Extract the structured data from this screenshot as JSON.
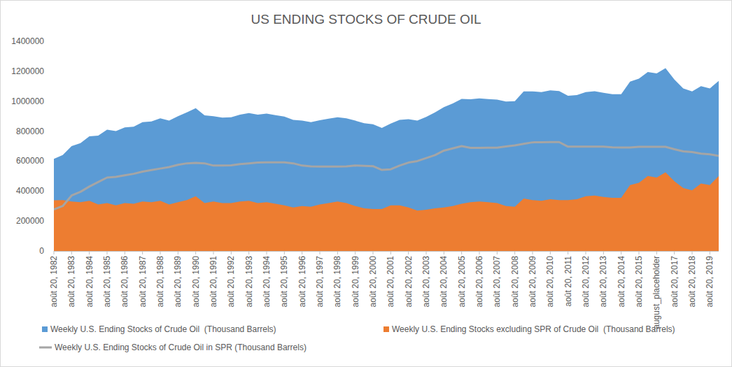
{
  "chart_data": {
    "type": "area",
    "title": "US ENDING STOCKS OF CRUDE OIL",
    "categories": [
      "août 20, 1982",
      null,
      "août 20, 1983",
      null,
      "août 20, 1984",
      null,
      "août 20, 1985",
      null,
      "août 20, 1986",
      null,
      "août 20, 1987",
      null,
      "août 20, 1988",
      null,
      "août 20, 1989",
      null,
      "août 20, 1990",
      null,
      "août 20, 1991",
      null,
      "août 20, 1992",
      null,
      "août 20, 1993",
      null,
      "août 20, 1994",
      null,
      "août 20, 1995",
      null,
      "août 20, 1996",
      null,
      "août 20, 1997",
      null,
      "août 20, 1998",
      null,
      "août 20, 1999",
      null,
      "août 20, 2000",
      null,
      "août 20, 2001",
      null,
      "août 20, 2002",
      null,
      "août 20, 2003",
      null,
      "août 20, 2004",
      null,
      "août 20, 2005",
      null,
      "août 20, 2006",
      null,
      "août 20, 2007",
      null,
      "août 20, 2008",
      null,
      "août 20, 2009",
      null,
      "août 20, 2010",
      null,
      "août 20, 2011",
      null,
      "août 20, 2012",
      null,
      "août 20, 2013",
      null,
      "août 20, 2014",
      null,
      "août 20, 2015",
      null,
      "august_placeholder",
      null,
      "août 20, 2017",
      null,
      "août 20, 2018",
      null,
      "août 20, 2019",
      null
    ],
    "series": [
      {
        "name": "Weekly U.S. Ending Stocks of Crude Oil  (Thousand Barrels)",
        "type": "area",
        "color": "#5b9bd5",
        "values": [
          615000,
          640000,
          700000,
          720000,
          765000,
          770000,
          810000,
          800000,
          825000,
          830000,
          860000,
          865000,
          885000,
          870000,
          900000,
          925000,
          953000,
          905000,
          900000,
          890000,
          892000,
          910000,
          920000,
          910000,
          917000,
          907000,
          897000,
          875000,
          870000,
          860000,
          873000,
          883000,
          893000,
          885000,
          870000,
          853000,
          846000,
          821000,
          850000,
          875000,
          880000,
          870000,
          895000,
          925000,
          960000,
          985000,
          1015000,
          1013000,
          1018000,
          1014000,
          1010000,
          998000,
          1000000,
          1065000,
          1065000,
          1061000,
          1072000,
          1067000,
          1036000,
          1041000,
          1061000,
          1066000,
          1056000,
          1047000,
          1046000,
          1131000,
          1150000,
          1195000,
          1185000,
          1220000,
          1144000,
          1085000,
          1065000,
          1100000,
          1085000,
          1135000
        ]
      },
      {
        "name": "Weekly U.S. Ending Stocks excluding SPR of Crude Oil  (Thousand Barrels)",
        "type": "area",
        "color": "#ed7d31",
        "values": [
          338000,
          340000,
          330000,
          325000,
          335000,
          310000,
          320000,
          305000,
          320000,
          315000,
          330000,
          325000,
          335000,
          310000,
          325000,
          340000,
          365000,
          320000,
          330000,
          320000,
          320000,
          330000,
          335000,
          320000,
          325000,
          315000,
          305000,
          290000,
          300000,
          295000,
          310000,
          320000,
          330000,
          320000,
          300000,
          285000,
          280000,
          280000,
          305000,
          305000,
          290000,
          270000,
          275000,
          285000,
          290000,
          300000,
          315000,
          325000,
          330000,
          325000,
          320000,
          300000,
          295000,
          350000,
          340000,
          335000,
          345000,
          340000,
          340000,
          345000,
          365000,
          370000,
          360000,
          355000,
          355000,
          440000,
          455000,
          500000,
          490000,
          525000,
          465000,
          420000,
          405000,
          450000,
          440000,
          500000
        ]
      },
      {
        "name": "Weekly U.S. Ending Stocks of Crude Oil in SPR (Thousand Barrels)",
        "type": "line",
        "color": "#a5a5a5",
        "values": [
          277000,
          300000,
          370000,
          395000,
          430000,
          460000,
          490000,
          495000,
          505000,
          515000,
          530000,
          540000,
          550000,
          560000,
          575000,
          585000,
          588000,
          585000,
          570000,
          570000,
          572000,
          580000,
          585000,
          590000,
          592000,
          592000,
          592000,
          585000,
          570000,
          565000,
          563000,
          563000,
          563000,
          565000,
          570000,
          568000,
          566000,
          541000,
          545000,
          570000,
          590000,
          600000,
          620000,
          640000,
          670000,
          685000,
          700000,
          688000,
          688000,
          689000,
          690000,
          698000,
          705000,
          715000,
          725000,
          726000,
          727000,
          727000,
          696000,
          696000,
          696000,
          696000,
          696000,
          692000,
          691000,
          691000,
          695000,
          695000,
          695000,
          695000,
          679000,
          665000,
          660000,
          650000,
          645000,
          635000
        ]
      }
    ],
    "ylim": [
      0,
      1400000
    ],
    "yticks": [
      0,
      200000,
      400000,
      600000,
      800000,
      1000000,
      1200000,
      1400000
    ],
    "grid": false,
    "stacked": false,
    "legend": "bottom"
  }
}
